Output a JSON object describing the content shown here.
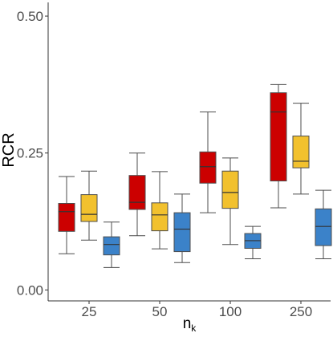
{
  "chart_data": {
    "type": "boxplot",
    "xlabel": "n",
    "xlabel_subscript": "k",
    "ylabel": "RCR",
    "categories": [
      "25",
      "50",
      "100",
      "250"
    ],
    "yticks": [
      "0.00",
      "0.25",
      "0.50"
    ],
    "ytick_values": [
      0.0,
      0.25,
      0.5
    ],
    "ylim": [
      -0.02,
      0.525
    ],
    "grid": false,
    "legend": "none",
    "series": [
      {
        "color": "#cc0000",
        "boxes": [
          {
            "min": 0.066,
            "q1": 0.107,
            "median": 0.143,
            "q3": 0.158,
            "max": 0.207
          },
          {
            "min": 0.099,
            "q1": 0.147,
            "median": 0.16,
            "q3": 0.209,
            "max": 0.25
          },
          {
            "min": 0.141,
            "q1": 0.195,
            "median": 0.225,
            "q3": 0.252,
            "max": 0.325
          },
          {
            "min": 0.15,
            "q1": 0.199,
            "median": 0.325,
            "q3": 0.36,
            "max": 0.375
          }
        ]
      },
      {
        "color": "#f2c12e",
        "boxes": [
          {
            "min": 0.091,
            "q1": 0.125,
            "median": 0.138,
            "q3": 0.174,
            "max": 0.217
          },
          {
            "min": 0.075,
            "q1": 0.108,
            "median": 0.137,
            "q3": 0.159,
            "max": 0.216
          },
          {
            "min": 0.083,
            "q1": 0.149,
            "median": 0.178,
            "q3": 0.217,
            "max": 0.241
          },
          {
            "min": 0.175,
            "q1": 0.223,
            "median": 0.235,
            "q3": 0.281,
            "max": 0.341
          }
        ]
      },
      {
        "color": "#3b82c9",
        "boxes": [
          {
            "min": 0.041,
            "q1": 0.064,
            "median": 0.083,
            "q3": 0.097,
            "max": 0.124
          },
          {
            "min": 0.05,
            "q1": 0.07,
            "median": 0.111,
            "q3": 0.141,
            "max": 0.175
          },
          {
            "min": 0.057,
            "q1": 0.076,
            "median": 0.09,
            "q3": 0.103,
            "max": 0.116
          },
          {
            "min": 0.057,
            "q1": 0.081,
            "median": 0.116,
            "q3": 0.148,
            "max": 0.182
          }
        ]
      }
    ]
  }
}
